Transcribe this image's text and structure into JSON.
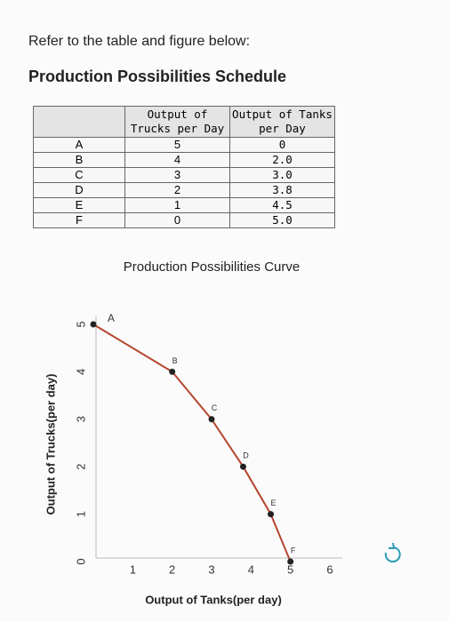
{
  "intro": "Refer to the table and figure below:",
  "heading": "Production Possibilities Schedule",
  "table": {
    "header": [
      "Output of Trucks per Day",
      "Output of Tanks per Day"
    ],
    "rows": [
      [
        "A",
        5,
        "0"
      ],
      [
        "B",
        4,
        "2.0"
      ],
      [
        "C",
        3,
        "3.0"
      ],
      [
        "D",
        2,
        "3.8"
      ],
      [
        "E",
        1,
        "4.5"
      ],
      [
        "F",
        0,
        "5.0"
      ]
    ]
  },
  "chart_data": {
    "type": "line",
    "title": "Production Possibilities Curve",
    "x_label": "Output of Tanks(per day)",
    "y_label": "Output of Trucks(per day)",
    "x": [
      0,
      2,
      3,
      3.8,
      4.5,
      5
    ],
    "values": [
      5,
      4,
      3,
      2,
      1,
      0
    ],
    "point_labels": [
      "A",
      "B",
      "C",
      "D",
      "E",
      "F"
    ],
    "color": "#b5452f",
    "marker_color": "#222222",
    "xlim": [
      0,
      6
    ],
    "xticks": [
      1,
      2,
      3,
      4,
      5,
      6
    ],
    "ylim": [
      0,
      5
    ],
    "yticks": [
      0,
      1,
      2,
      3,
      4,
      5
    ]
  }
}
